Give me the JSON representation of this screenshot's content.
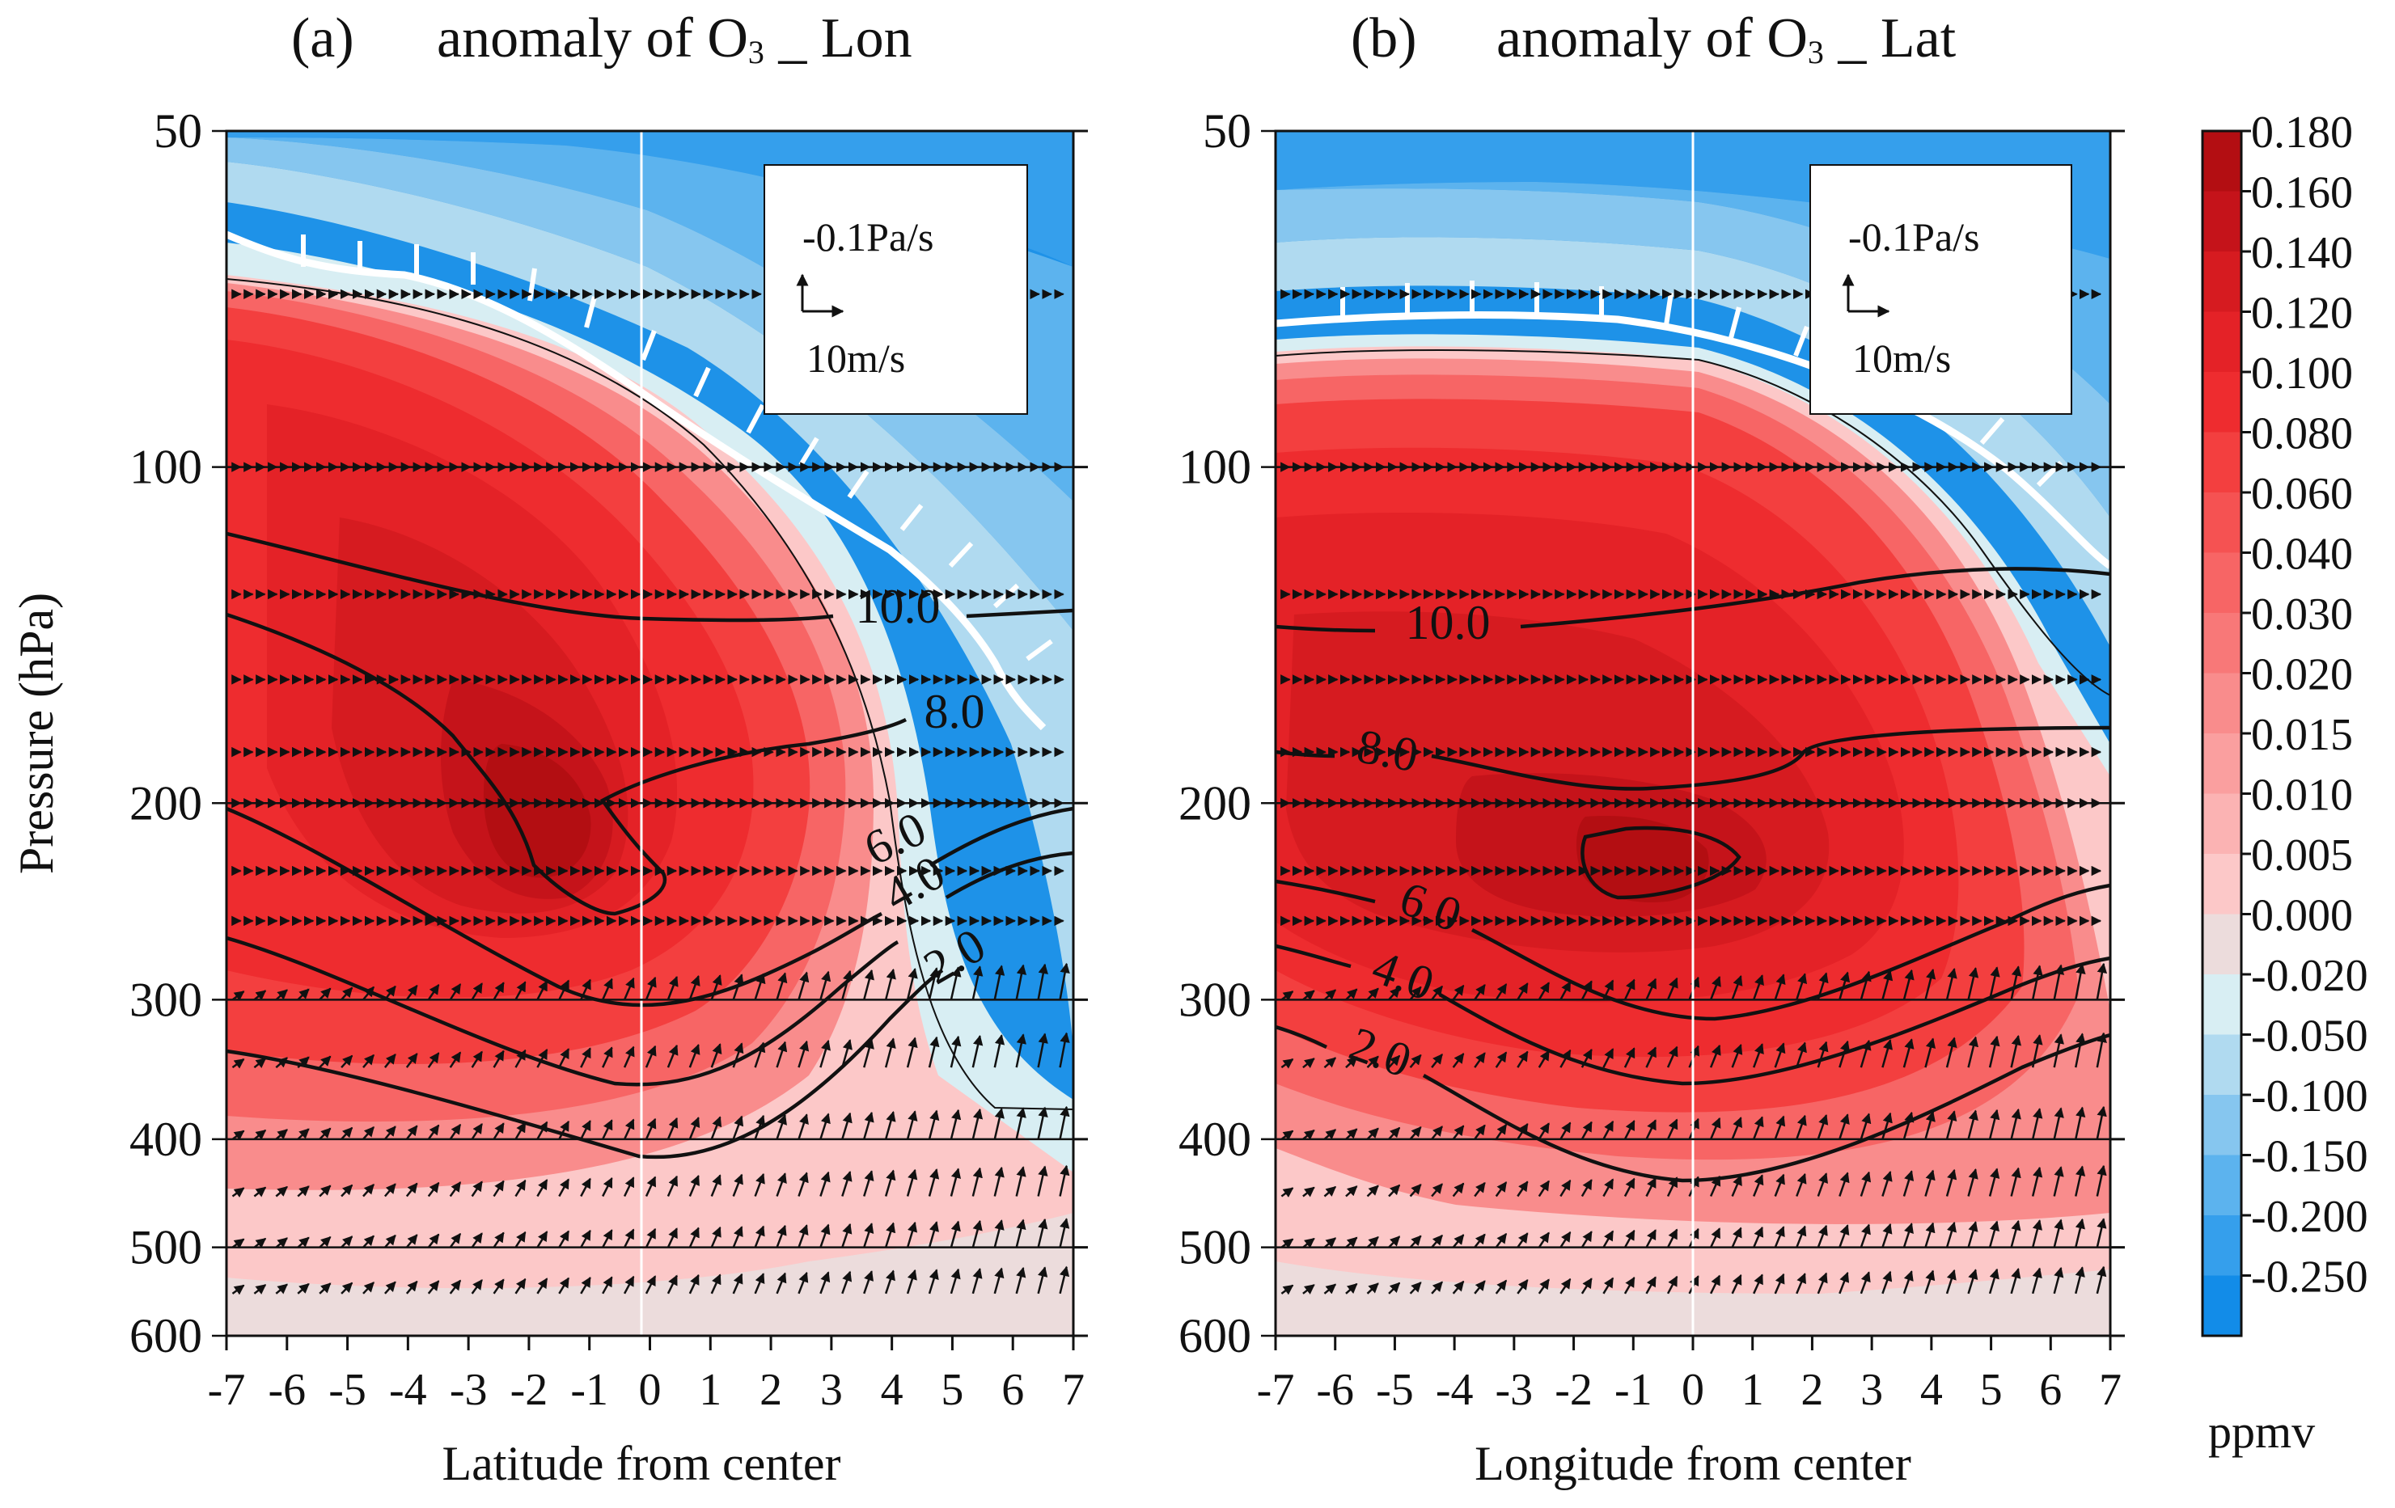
{
  "chart_data": [
    {
      "type": "contour",
      "panel_label": "(a)",
      "title": "anomaly of O₃ _ Lon",
      "title_parts": {
        "pre": "anomaly of O",
        "sub": "3",
        "post": " _ Lon"
      },
      "xlabel": "Latitude from center",
      "ylabel": "Pressure (hPa)",
      "xlim": [
        -7,
        7
      ],
      "ylim": [
        600,
        50
      ],
      "yscale": "log",
      "x_ticks": [
        "-7",
        "-6",
        "-5",
        "-4",
        "-3",
        "-2",
        "-1",
        "0",
        "1",
        "2",
        "3",
        "4",
        "5",
        "6",
        "7"
      ],
      "y_ticks": [
        "50",
        "100",
        "200",
        "300",
        "400",
        "500",
        "600"
      ],
      "y_tick_values": [
        50,
        100,
        200,
        300,
        400,
        500,
        600
      ],
      "contour_labels": [
        "10.0",
        "8.0",
        "6.0",
        "4.0",
        "2.0"
      ],
      "contour_levels": [
        2.0,
        4.0,
        6.0,
        8.0,
        10.0
      ],
      "wind_key": {
        "vertical": "-0.1Pa/s",
        "horizontal": "10m/s"
      },
      "max_anomaly_center": {
        "x": -1.5,
        "p": 220
      },
      "tropopause_marker": "white hatched line"
    },
    {
      "type": "contour",
      "panel_label": "(b)",
      "title": "anomaly of O₃ _ Lat",
      "title_parts": {
        "pre": "anomaly of O",
        "sub": "3",
        "post": " _ Lat"
      },
      "xlabel": "Longitude from center",
      "ylabel": "",
      "xlim": [
        -7,
        7
      ],
      "ylim": [
        600,
        50
      ],
      "yscale": "log",
      "x_ticks": [
        "-7",
        "-6",
        "-5",
        "-4",
        "-3",
        "-2",
        "-1",
        "0",
        "1",
        "2",
        "3",
        "4",
        "5",
        "6",
        "7"
      ],
      "y_ticks": [
        "50",
        "100",
        "200",
        "300",
        "400",
        "500",
        "600"
      ],
      "y_tick_values": [
        50,
        100,
        200,
        300,
        400,
        500,
        600
      ],
      "contour_labels": [
        "10.0",
        "8.0",
        "6.0",
        "4.0",
        "2.0"
      ],
      "contour_levels": [
        2.0,
        4.0,
        6.0,
        8.0,
        10.0
      ],
      "wind_key": {
        "vertical": "-0.1Pa/s",
        "horizontal": "10m/s"
      },
      "max_anomaly_center": {
        "x": 0,
        "p": 230
      },
      "tropopause_marker": "white hatched line"
    }
  ],
  "colorbar": {
    "unit": "ppmv",
    "levels": [
      "0.180",
      "0.160",
      "0.140",
      "0.120",
      "0.100",
      "0.080",
      "0.060",
      "0.040",
      "0.030",
      "0.020",
      "0.015",
      "0.010",
      "0.005",
      "0.000",
      "-0.020",
      "-0.050",
      "-0.100",
      "-0.150",
      "-0.200",
      "-0.250"
    ],
    "colors": [
      "#b30e12",
      "#c5131a",
      "#d61b20",
      "#e42227",
      "#ee2c2f",
      "#f33f3f",
      "#f55252",
      "#f76565",
      "#f87878",
      "#f98c8c",
      "#fa9f9f",
      "#fbb3b3",
      "#fcc8c8",
      "#ecdcdc",
      "#d8eef3",
      "#b0daf0",
      "#86c6ef",
      "#5cb3ee",
      "#359fec",
      "#128ce8"
    ]
  }
}
